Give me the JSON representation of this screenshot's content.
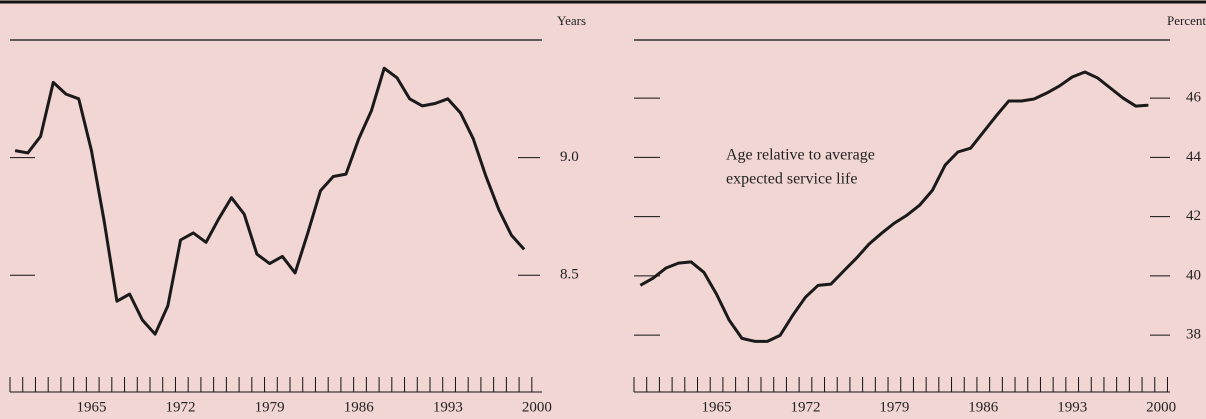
{
  "chart_data": [
    {
      "type": "line",
      "unit_label": "Years",
      "x": [
        1959,
        1960,
        1961,
        1962,
        1963,
        1964,
        1965,
        1966,
        1967,
        1968,
        1969,
        1970,
        1971,
        1972,
        1973,
        1974,
        1975,
        1976,
        1977,
        1978,
        1979,
        1980,
        1981,
        1982,
        1983,
        1984,
        1985,
        1986,
        1987,
        1988,
        1989,
        1990,
        1991,
        1992,
        1993,
        1994,
        1995,
        1996,
        1997,
        1998,
        1999
      ],
      "series": [
        {
          "color": "#1a1a1a",
          "values": [
            9.03,
            9.02,
            9.09,
            9.32,
            9.27,
            9.25,
            9.03,
            8.73,
            8.39,
            8.42,
            8.31,
            8.25,
            8.37,
            8.65,
            8.68,
            8.64,
            8.74,
            8.83,
            8.76,
            8.59,
            8.55,
            8.58,
            8.51,
            8.68,
            8.86,
            8.92,
            8.93,
            9.08,
            9.2,
            9.38,
            9.34,
            9.25,
            9.22,
            9.23,
            9.25,
            9.19,
            9.08,
            8.92,
            8.78,
            8.67,
            8.61
          ]
        }
      ],
      "xlim": [
        1958.6,
        2000.4
      ],
      "xticks": [
        1965,
        1972,
        1979,
        1986,
        1993,
        2000
      ],
      "ylim": [
        8.14,
        9.5
      ],
      "yticks": [
        {
          "value": 8.5,
          "label": "8.5"
        },
        {
          "value": 9.0,
          "label": "9.0"
        }
      ]
    },
    {
      "type": "line",
      "unit_label": "Percent",
      "annotation": [
        "Age relative to average",
        "expected service life"
      ],
      "x": [
        1959,
        1960,
        1961,
        1962,
        1963,
        1964,
        1965,
        1966,
        1967,
        1968,
        1969,
        1970,
        1971,
        1972,
        1973,
        1974,
        1975,
        1976,
        1977,
        1978,
        1979,
        1980,
        1981,
        1982,
        1983,
        1984,
        1985,
        1986,
        1987,
        1988,
        1989,
        1990,
        1991,
        1992,
        1993,
        1994,
        1995,
        1996,
        1997,
        1998,
        1999
      ],
      "series": [
        {
          "color": "#1a1a1a",
          "values": [
            39.68,
            39.92,
            40.26,
            40.43,
            40.47,
            40.12,
            39.38,
            38.5,
            37.89,
            37.79,
            37.79,
            37.99,
            38.67,
            39.28,
            39.68,
            39.72,
            40.16,
            40.59,
            41.07,
            41.44,
            41.78,
            42.05,
            42.39,
            42.89,
            43.74,
            44.18,
            44.31,
            44.85,
            45.39,
            45.9,
            45.9,
            45.97,
            46.17,
            46.41,
            46.71,
            46.88,
            46.68,
            46.34,
            46.0,
            45.73,
            45.76
          ]
        }
      ],
      "xlim": [
        1958.5,
        2000.7
      ],
      "xticks": [
        1965,
        1972,
        1979,
        1986,
        1993,
        2000
      ],
      "ylim": [
        37.16,
        47.96
      ],
      "yticks": [
        38,
        40,
        42,
        44,
        46
      ]
    }
  ]
}
